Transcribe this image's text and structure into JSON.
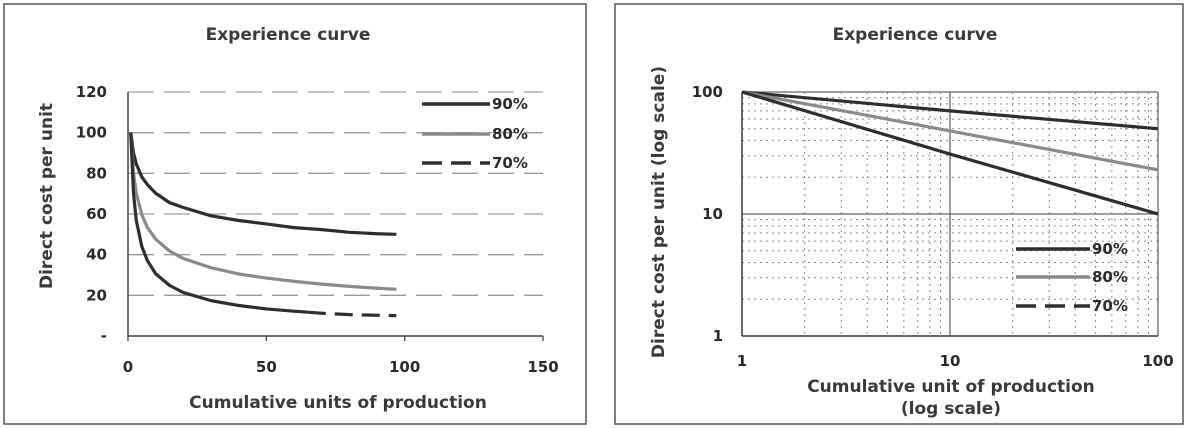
{
  "chart_data": [
    {
      "type": "line",
      "title": "Experience curve",
      "xlabel": "Cumulative units of production",
      "ylabel": "Direct cost per unit",
      "xlim": [
        0,
        150
      ],
      "ylim": [
        0,
        120
      ],
      "x_ticks": [
        "0",
        "50",
        "100",
        "150"
      ],
      "y_ticks": [
        "-",
        "20",
        "40",
        "60",
        "80",
        "100",
        "120"
      ],
      "grid": "horizontal dashed",
      "legend_position": "top-right",
      "series": [
        {
          "name": "90%",
          "color": "#2e2e2e",
          "style": "solid",
          "x": [
            1,
            2,
            3,
            5,
            7,
            10,
            15,
            20,
            30,
            40,
            50,
            60,
            70,
            80,
            90,
            97
          ],
          "y": [
            100,
            90,
            84.6,
            78.2,
            74.5,
            70.2,
            65.6,
            63.2,
            59.1,
            56.8,
            55.1,
            53.3,
            52.3,
            51.0,
            50.3,
            50
          ]
        },
        {
          "name": "80%",
          "color": "#8a8a8a",
          "style": "solid",
          "x": [
            1,
            2,
            3,
            5,
            7,
            10,
            15,
            20,
            30,
            40,
            50,
            60,
            70,
            80,
            90,
            97
          ],
          "y": [
            100,
            80,
            70.2,
            59.6,
            53.4,
            47.6,
            41.8,
            38.1,
            33.6,
            30.5,
            28.5,
            26.9,
            25.5,
            24.4,
            23.5,
            23
          ]
        },
        {
          "name": "70%",
          "color": "#2e2e2e",
          "style": "solid-then-dashed",
          "dash_from_x": 65,
          "x": [
            1,
            2,
            3,
            5,
            7,
            10,
            15,
            20,
            30,
            40,
            50,
            60,
            65,
            70,
            80,
            90,
            97
          ],
          "y": [
            100,
            70,
            56.8,
            44,
            37.1,
            30.6,
            24.9,
            21.4,
            17.4,
            15.0,
            13.3,
            12.2,
            11.7,
            11.2,
            10.5,
            10.2,
            10
          ]
        }
      ]
    },
    {
      "type": "line",
      "title": "Experience curve",
      "xlabel": "Cumulative unit of production",
      "xlabel2": "(log scale)",
      "ylabel": "Direct cost per unit (log scale)",
      "x_scale": "log",
      "y_scale": "log",
      "xlim": [
        1,
        100
      ],
      "ylim": [
        1,
        100
      ],
      "x_ticks": [
        "1",
        "10",
        "100"
      ],
      "y_ticks": [
        "1",
        "10",
        "100"
      ],
      "grid": "major solid, minor dotted",
      "legend_position": "bottom-right",
      "series": [
        {
          "name": "90%",
          "color": "#2e2e2e",
          "style": "solid",
          "x": [
            1,
            10,
            100
          ],
          "y": [
            100,
            70,
            50
          ]
        },
        {
          "name": "80%",
          "color": "#8a8a8a",
          "style": "solid",
          "x": [
            1,
            10,
            100
          ],
          "y": [
            100,
            48,
            23
          ]
        },
        {
          "name": "70%",
          "color": "#2e2e2e",
          "style": "dashed",
          "x": [
            1,
            10,
            100
          ],
          "y": [
            100,
            31,
            10
          ]
        }
      ]
    }
  ]
}
